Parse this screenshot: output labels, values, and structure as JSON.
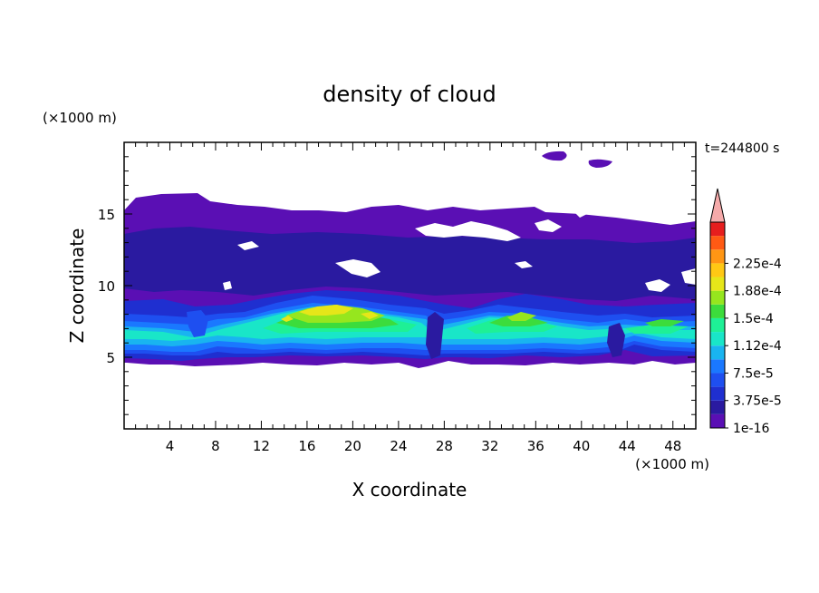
{
  "chart_data": {
    "type": "filled-contour",
    "title": "density of cloud",
    "xlabel": "X coordinate",
    "ylabel": "Z coordinate",
    "x_unit": "(×1000 m)",
    "y_unit": "(×1000 m)",
    "time_label": "t=244800 s",
    "xlim": [
      0,
      50
    ],
    "ylim": [
      0,
      20
    ],
    "x_ticks": [
      4,
      8,
      12,
      16,
      20,
      24,
      28,
      32,
      36,
      40,
      44,
      48
    ],
    "y_ticks": [
      5,
      10,
      15
    ],
    "colorbar": {
      "labels": [
        "1e-16",
        "3.75e-5",
        "7.5e-5",
        "1.12e-4",
        "1.5e-4",
        "1.88e-4",
        "2.25e-4"
      ],
      "levels": [
        1e-16,
        1.875e-05,
        3.75e-05,
        5.625e-05,
        7.5e-05,
        9.375e-05,
        0.000112,
        0.000131,
        0.00015,
        0.000169,
        0.000188,
        0.000206,
        0.000225,
        0.000244
      ],
      "colors": [
        "#5a0fb4",
        "#2a1aa0",
        "#1f2fd0",
        "#1e4ff0",
        "#1a78ff",
        "#19b4f0",
        "#19e6c8",
        "#1ef096",
        "#3cdc3c",
        "#96e61e",
        "#e6e619",
        "#ffc814",
        "#ff9614",
        "#ff5a14",
        "#e61e1e"
      ],
      "overflow_color": "#f5aaaa"
    },
    "layers": [
      {
        "level": "1e-16",
        "z_range": [
          4.7,
          16.1
        ],
        "description": "cloud envelope"
      },
      {
        "level": "3.75e-5",
        "z_range": [
          5.0,
          9.0
        ]
      },
      {
        "level": "1.12e-4",
        "z_range": [
          5.5,
          8.0
        ]
      },
      {
        "level": "1.88e-4",
        "x_range": [
          14,
          22
        ],
        "z_range": [
          7.0,
          8.8
        ]
      }
    ]
  }
}
